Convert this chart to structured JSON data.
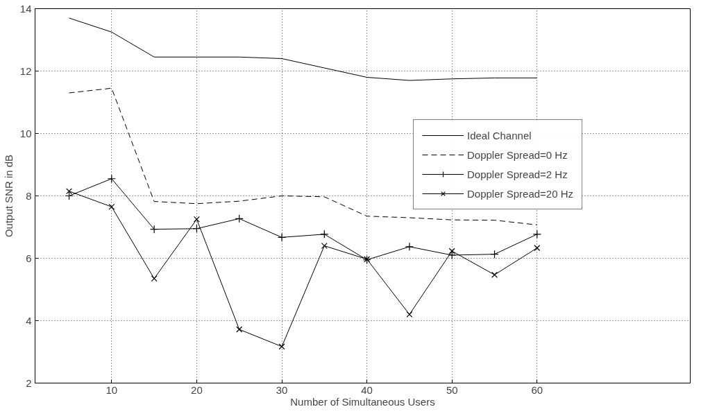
{
  "chart_data": {
    "type": "line",
    "xlabel": "Number of Simultaneous Users",
    "ylabel": "Output SNR in dB",
    "x": [
      5,
      10,
      15,
      20,
      25,
      30,
      35,
      40,
      45,
      50,
      55,
      60
    ],
    "series": [
      {
        "name": "Ideal Channel",
        "color": "#000000",
        "line_style": "solid",
        "marker": "none",
        "values": [
          13.7,
          13.25,
          12.45,
          12.45,
          12.45,
          12.4,
          12.1,
          11.8,
          11.7,
          11.75,
          11.78,
          11.78
        ]
      },
      {
        "name": "Doppler Spread=0 Hz",
        "color": "#000000",
        "line_style": "dashed",
        "marker": "none",
        "values": [
          11.3,
          11.45,
          7.82,
          7.75,
          7.83,
          8.0,
          7.97,
          7.35,
          7.3,
          7.23,
          7.22,
          7.07
        ]
      },
      {
        "name": "Doppler Spread=2 Hz",
        "color": "#000000",
        "line_style": "solid",
        "marker": "cross",
        "values": [
          8.0,
          8.55,
          6.93,
          6.95,
          7.27,
          6.67,
          6.77,
          5.95,
          6.37,
          6.1,
          6.13,
          6.77
        ]
      },
      {
        "name": "Doppler Spread=20 Hz",
        "color": "#000000",
        "line_style": "solid",
        "marker": "x",
        "values": [
          8.15,
          7.65,
          5.35,
          7.25,
          3.72,
          3.17,
          6.4,
          5.97,
          4.2,
          6.23,
          5.47,
          6.33
        ]
      }
    ],
    "xlim": [
      1,
      78
    ],
    "ylim": [
      2,
      14
    ],
    "xticks": [
      10,
      20,
      30,
      40,
      50,
      60
    ],
    "yticks": [
      2,
      4,
      6,
      8,
      10,
      12,
      14
    ],
    "grid": true,
    "legend": "right"
  }
}
